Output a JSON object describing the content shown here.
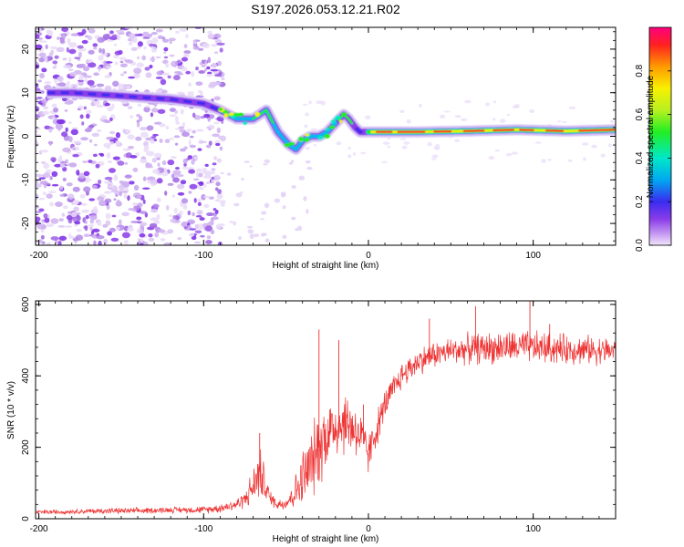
{
  "title": "S197.2026.053.12.21.R02",
  "chart_data": [
    {
      "type": "heatmap",
      "name": "spectrogram",
      "xlabel": "Height of straight line (km)",
      "ylabel": "Frequency (Hz)",
      "xlim": [
        -202,
        150
      ],
      "ylim": [
        -25,
        25
      ],
      "xticks": [
        -200,
        -100,
        0,
        100
      ],
      "xtick_labels": [
        "-200",
        "-100",
        "0",
        "100"
      ],
      "yticks": [
        -20,
        -10,
        0,
        10,
        20
      ],
      "ytick_labels": [
        "-20",
        "-10",
        "0",
        "10",
        "20"
      ],
      "ridge": {
        "x": [
          -195,
          -180,
          -160,
          -140,
          -120,
          -100,
          -90,
          -80,
          -70,
          -62,
          -55,
          -48,
          -44,
          -40,
          -35,
          -30,
          -25,
          -20,
          -15,
          -12,
          -8,
          -5,
          0,
          10,
          30,
          60,
          90,
          120,
          150
        ],
        "y": [
          10,
          10,
          9.5,
          9,
          8.5,
          7.5,
          6,
          4,
          4,
          6,
          1,
          -2,
          -3,
          -1,
          0,
          0,
          1,
          3,
          5,
          4,
          2,
          1,
          1,
          1,
          1,
          1.2,
          1.5,
          1.2,
          1.5
        ]
      },
      "colorbar": {
        "label": "Normalized spectral amplitude",
        "range": [
          0,
          1
        ],
        "ticks": [
          0.0,
          0.2,
          0.4,
          0.6,
          0.8
        ],
        "tick_labels": [
          "0.0",
          "0.2",
          "0.4",
          "0.6",
          "0.8"
        ]
      }
    },
    {
      "type": "line",
      "name": "snr",
      "xlabel": "Height of straight line (km)",
      "ylabel": "SNR (10 * v/v)",
      "xlim": [
        -202,
        150
      ],
      "ylim": [
        0,
        610
      ],
      "xticks": [
        -200,
        -100,
        0,
        100
      ],
      "xtick_labels": [
        "-200",
        "-100",
        "0",
        "100"
      ],
      "yticks": [
        0,
        200,
        400,
        600
      ],
      "ytick_labels": [
        "0",
        "200",
        "400",
        "600"
      ],
      "color": "#ee3333",
      "series": [
        {
          "name": "SNR",
          "x": [
            -202,
            -180,
            -160,
            -140,
            -120,
            -100,
            -90,
            -80,
            -75,
            -70,
            -66,
            -63,
            -60,
            -55,
            -50,
            -45,
            -40,
            -35,
            -30,
            -25,
            -20,
            -15,
            -10,
            -5,
            0,
            5,
            10,
            15,
            20,
            30,
            40,
            50,
            60,
            80,
            100,
            120,
            150
          ],
          "base": [
            18,
            20,
            22,
            22,
            25,
            25,
            30,
            40,
            55,
            90,
            130,
            100,
            60,
            40,
            45,
            70,
            110,
            150,
            200,
            240,
            260,
            270,
            260,
            230,
            180,
            250,
            320,
            360,
            400,
            440,
            460,
            470,
            475,
            480,
            480,
            475,
            470
          ],
          "amp": [
            8,
            8,
            10,
            10,
            10,
            12,
            15,
            20,
            30,
            60,
            90,
            60,
            25,
            20,
            25,
            50,
            100,
            120,
            130,
            120,
            110,
            110,
            100,
            90,
            70,
            60,
            50,
            50,
            45,
            45,
            45,
            45,
            50,
            55,
            55,
            50,
            45
          ]
        }
      ],
      "spikes": [
        {
          "x": -66,
          "y": 240
        },
        {
          "x": -30,
          "y": 530
        },
        {
          "x": -18,
          "y": 500
        },
        {
          "x": -3,
          "y": 320
        },
        {
          "x": 37,
          "y": 560
        },
        {
          "x": 65,
          "y": 595
        },
        {
          "x": 98,
          "y": 610
        },
        {
          "x": 110,
          "y": 545
        }
      ]
    }
  ]
}
